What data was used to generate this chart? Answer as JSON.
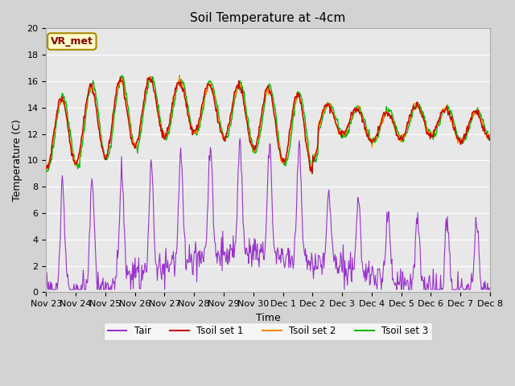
{
  "title": "Soil Temperature at -4cm",
  "xlabel": "Time",
  "ylabel": "Temperature (C)",
  "ylim": [
    0,
    20
  ],
  "fig_bg_color": "#d3d3d3",
  "plot_bg_color": "#e8e8e8",
  "line_colors": {
    "Tair": "#9933cc",
    "Tsoil1": "#cc0000",
    "Tsoil2": "#ff8800",
    "Tsoil3": "#00bb00"
  },
  "annotation_text": "VR_met",
  "annotation_bg": "#ffffcc",
  "annotation_border": "#aa8800",
  "tick_labels": [
    "Nov 23",
    "Nov 24",
    "Nov 25",
    "Nov 26",
    "Nov 27",
    "Nov 28",
    "Nov 29",
    "Nov 30",
    "Dec 1",
    "Dec 2",
    "Dec 3",
    "Dec 4",
    "Dec 5",
    "Dec 6",
    "Dec 7",
    "Dec 8"
  ]
}
